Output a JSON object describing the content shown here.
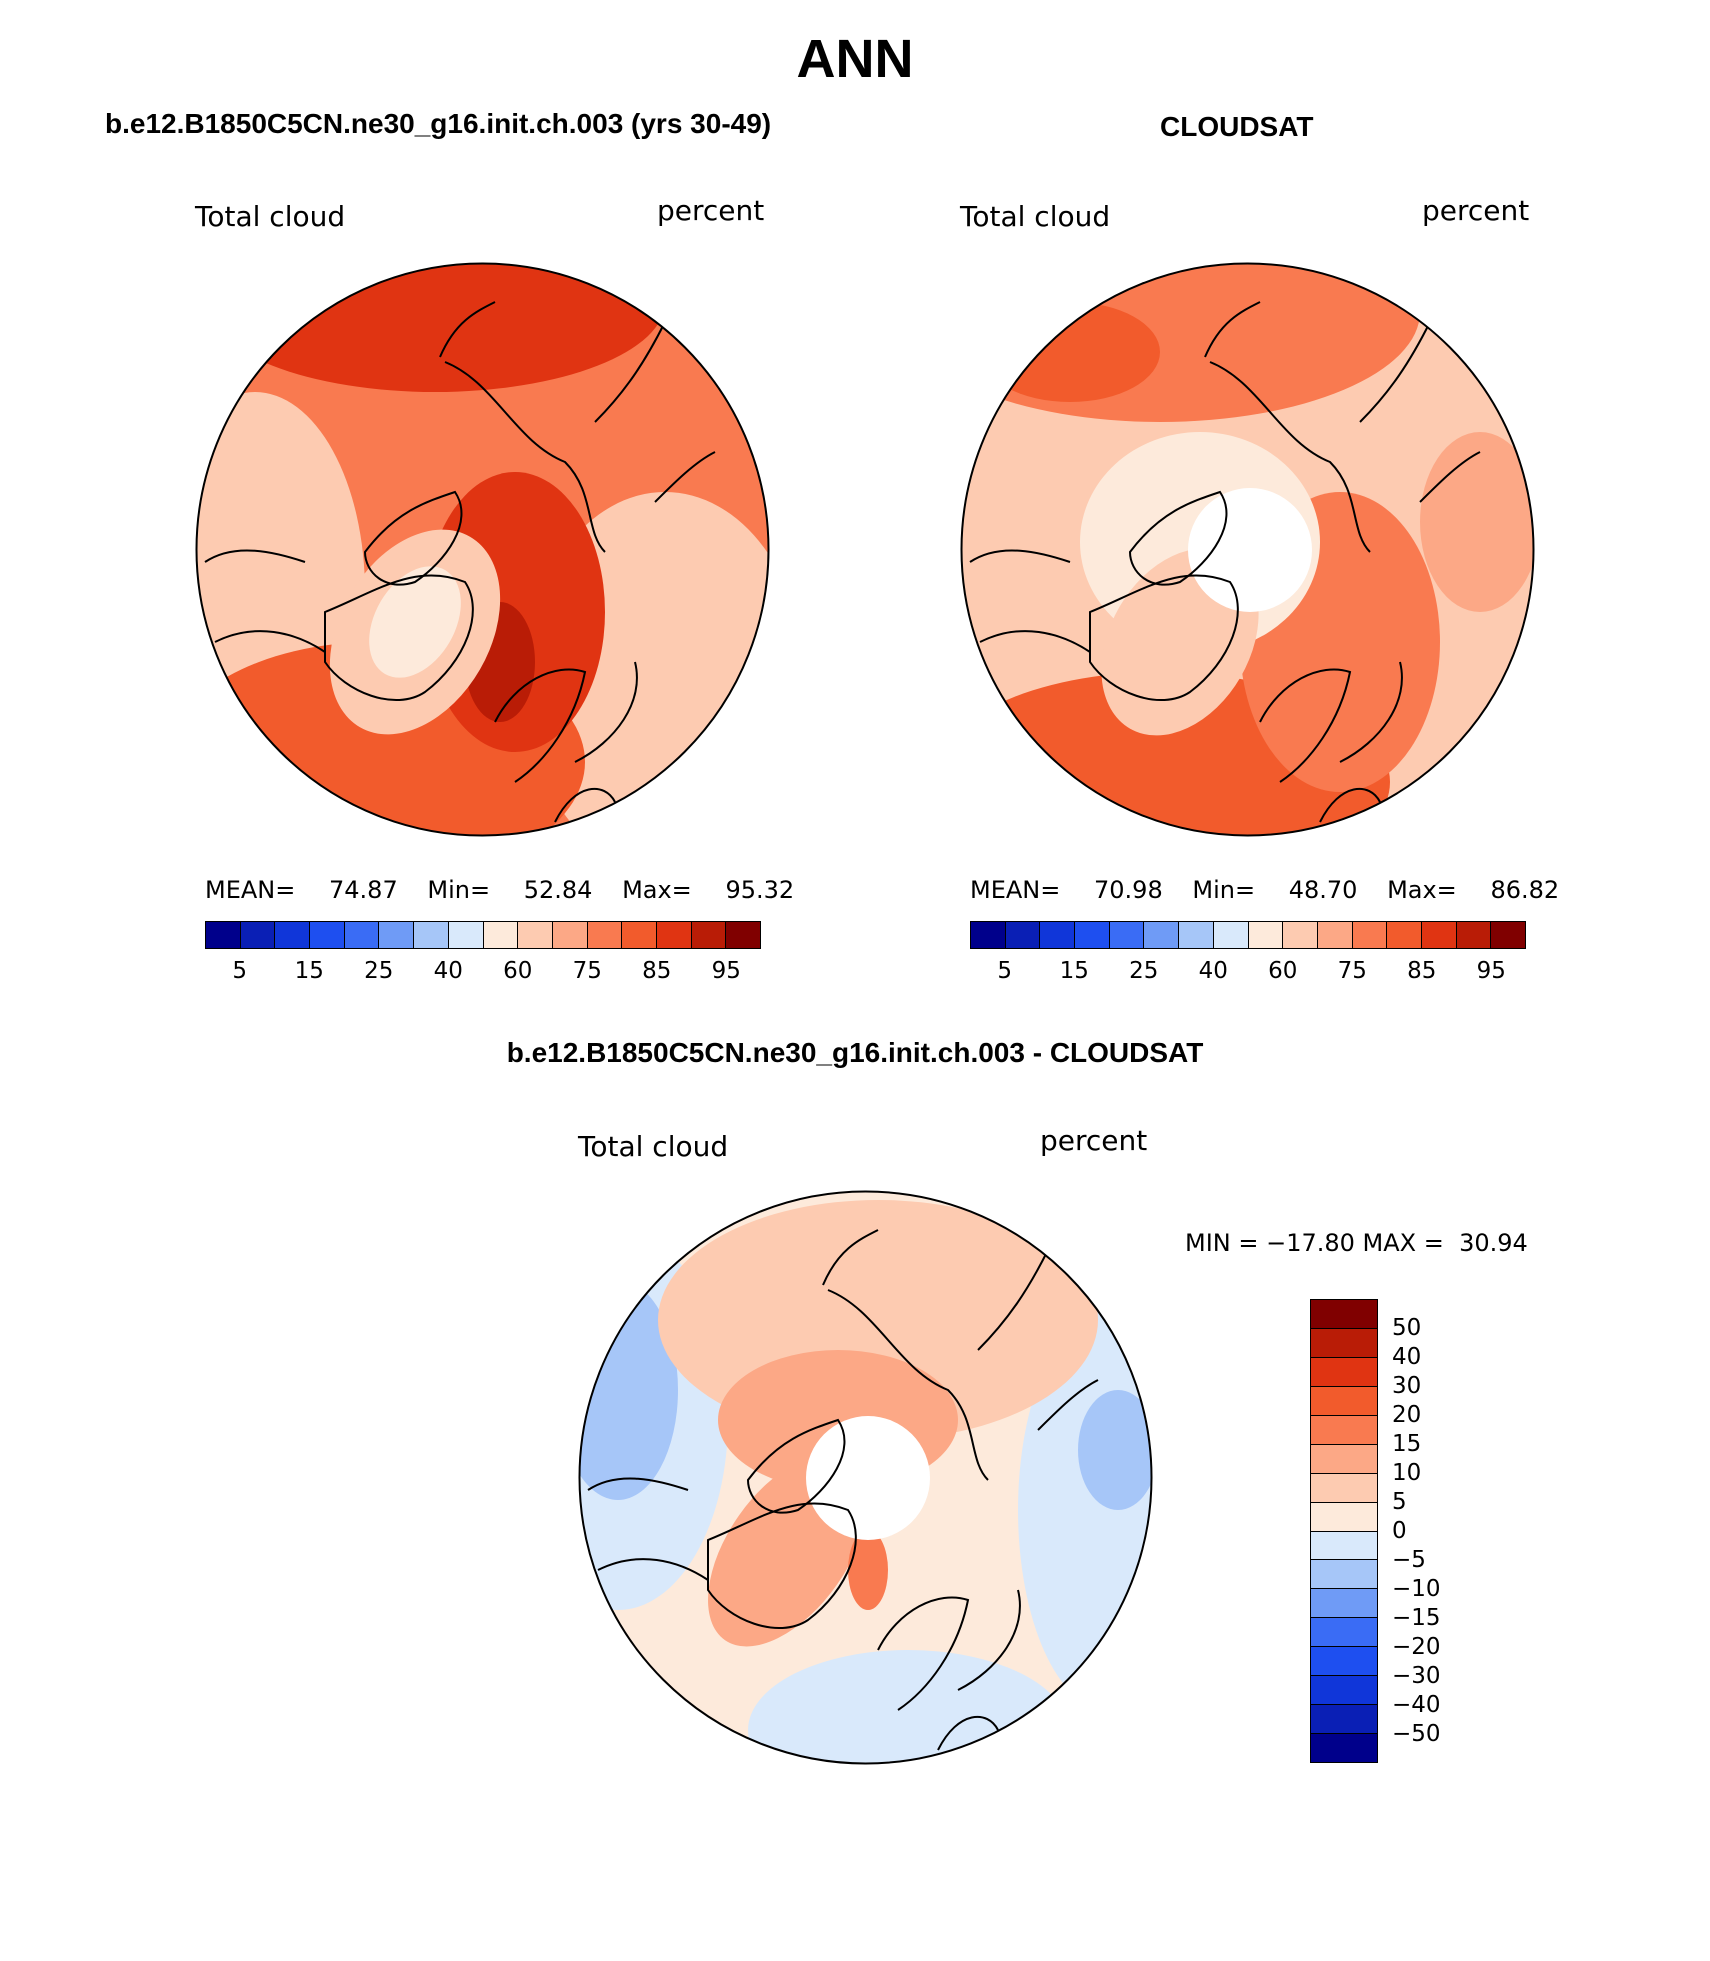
{
  "figure": {
    "title": "ANN",
    "diff_title": "b.e12.B1850C5CN.ne30_g16.init.ch.003 - CLOUDSAT"
  },
  "panels": [
    {
      "id": "model",
      "title": "b.e12.B1850C5CN.ne30_g16.init.ch.003 (yrs 30-49)",
      "variable": "Total cloud",
      "units": "percent",
      "stats": {
        "mean_label": "MEAN=",
        "mean": "74.87",
        "min_label": "Min=",
        "min": "52.84",
        "max_label": "Max=",
        "max": "95.32"
      }
    },
    {
      "id": "obs",
      "title": "CLOUDSAT",
      "variable": "Total cloud",
      "units": "percent",
      "stats": {
        "mean_label": "MEAN=",
        "mean": "70.98",
        "min_label": "Min=",
        "min": "48.70",
        "max_label": "Max=",
        "max": "86.82"
      }
    },
    {
      "id": "diff",
      "variable": "Total cloud",
      "units": "percent",
      "stats_text": "MIN = −17.80 MAX =  30.94"
    }
  ],
  "colorbars": {
    "main": {
      "colors": [
        "#00008b",
        "#0a1fb5",
        "#1036d9",
        "#1e4ff0",
        "#3a6cf5",
        "#6f9bf6",
        "#a6c6f8",
        "#d9e9fb",
        "#fdeadb",
        "#fdcbb1",
        "#fca886",
        "#f97a50",
        "#f25b2c",
        "#e03412",
        "#b91c06",
        "#800000"
      ],
      "tick_labels": [
        "5",
        "15",
        "25",
        "40",
        "60",
        "75",
        "85",
        "95"
      ]
    },
    "diff": {
      "colors": [
        "#800000",
        "#b91c06",
        "#e03412",
        "#f25b2c",
        "#f97a50",
        "#fca886",
        "#fdcbb1",
        "#fdeadb",
        "#d9e9fb",
        "#a6c6f8",
        "#6f9bf6",
        "#3a6cf5",
        "#1e4ff0",
        "#1036d9",
        "#0a1fb5",
        "#00008b"
      ],
      "tick_labels": [
        "50",
        "40",
        "30",
        "20",
        "15",
        "10",
        "5",
        "0",
        "−5",
        "−10",
        "−15",
        "−20",
        "−30",
        "−40",
        "−50"
      ]
    }
  },
  "map_fill": {
    "model": {
      "base": "#f97a50",
      "ring": "#f25b2c",
      "inner": "#fca886",
      "hot": "#e03412",
      "land": "#fdcbb1"
    },
    "obs": {
      "base": "#fdcbb1",
      "ring": "#f97a50",
      "inner": "#fdeadb",
      "hot": "#f25b2c",
      "land": "#fca886"
    },
    "diff": {
      "base": "#fdeadb",
      "ring": "#d9e9fb",
      "inner": "#fca886",
      "hot": "#f97a50",
      "land": "#fdcbb1"
    }
  }
}
